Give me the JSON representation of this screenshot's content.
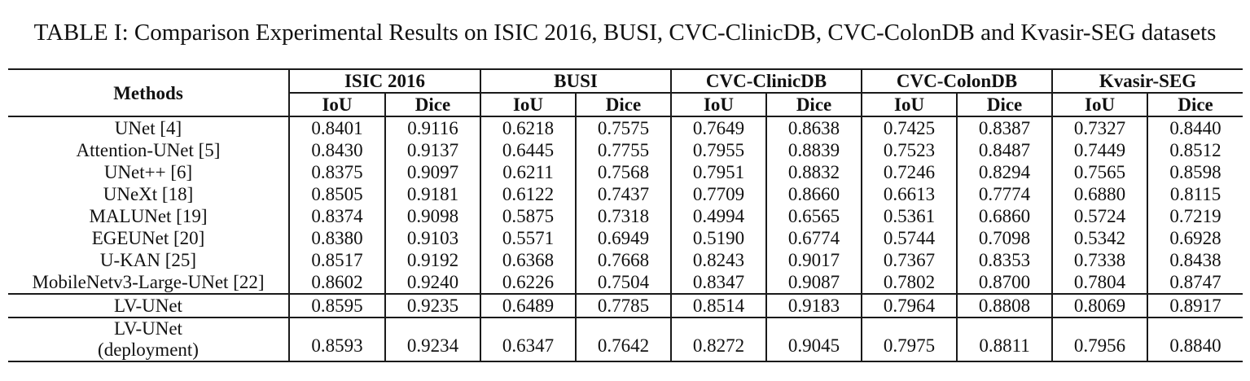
{
  "title": "TABLE I: Comparison Experimental Results on ISIC 2016, BUSI, CVC-ClinicDB, CVC-ColonDB and Kvasir-SEG datasets",
  "table": {
    "methods_header": "Methods",
    "groups": [
      "ISIC 2016",
      "BUSI",
      "CVC-ClinicDB",
      "CVC-ColonDB",
      "Kvasir-SEG"
    ],
    "subheaders": [
      "IoU",
      "Dice"
    ],
    "rows": [
      {
        "method_lines": [
          "UNet [4]"
        ],
        "method_bold": false,
        "variant": "baseline",
        "values": [
          "0.8401",
          "0.9116",
          "0.6218",
          "0.7575",
          "0.7649",
          "0.8638",
          "0.7425",
          "0.8387",
          "0.7327",
          "0.8440"
        ],
        "bold": [
          false,
          false,
          false,
          false,
          false,
          false,
          false,
          false,
          false,
          false
        ]
      },
      {
        "method_lines": [
          "Attention-UNet [5]"
        ],
        "method_bold": false,
        "variant": "baseline",
        "values": [
          "0.8430",
          "0.9137",
          "0.6445",
          "0.7755",
          "0.7955",
          "0.8839",
          "0.7523",
          "0.8487",
          "0.7449",
          "0.8512"
        ],
        "bold": [
          false,
          false,
          false,
          false,
          false,
          false,
          false,
          false,
          false,
          false
        ]
      },
      {
        "method_lines": [
          "UNet++ [6]"
        ],
        "method_bold": false,
        "variant": "baseline",
        "values": [
          "0.8375",
          "0.9097",
          "0.6211",
          "0.7568",
          "0.7951",
          "0.8832",
          "0.7246",
          "0.8294",
          "0.7565",
          "0.8598"
        ],
        "bold": [
          false,
          false,
          false,
          false,
          false,
          false,
          false,
          false,
          false,
          false
        ]
      },
      {
        "method_lines": [
          "UNeXt [18]"
        ],
        "method_bold": false,
        "variant": "baseline",
        "values": [
          "0.8505",
          "0.9181",
          "0.6122",
          "0.7437",
          "0.7709",
          "0.8660",
          "0.6613",
          "0.7774",
          "0.6880",
          "0.8115"
        ],
        "bold": [
          false,
          false,
          false,
          false,
          false,
          false,
          false,
          false,
          false,
          false
        ]
      },
      {
        "method_lines": [
          "MALUNet [19]"
        ],
        "method_bold": false,
        "variant": "baseline",
        "values": [
          "0.8374",
          "0.9098",
          "0.5875",
          "0.7318",
          "0.4994",
          "0.6565",
          "0.5361",
          "0.6860",
          "0.5724",
          "0.7219"
        ],
        "bold": [
          false,
          false,
          false,
          false,
          false,
          false,
          false,
          false,
          false,
          false
        ]
      },
      {
        "method_lines": [
          "EGEUNet [20]"
        ],
        "method_bold": false,
        "variant": "baseline",
        "values": [
          "0.8380",
          "0.9103",
          "0.5571",
          "0.6949",
          "0.5190",
          "0.6774",
          "0.5744",
          "0.7098",
          "0.5342",
          "0.6928"
        ],
        "bold": [
          false,
          false,
          false,
          false,
          false,
          false,
          false,
          false,
          false,
          false
        ]
      },
      {
        "method_lines": [
          "U-KAN [25]"
        ],
        "method_bold": false,
        "variant": "baseline",
        "values": [
          "0.8517",
          "0.9192",
          "0.6368",
          "0.7668",
          "0.8243",
          "0.9017",
          "0.7367",
          "0.8353",
          "0.7338",
          "0.8438"
        ],
        "bold": [
          false,
          false,
          false,
          false,
          false,
          false,
          false,
          false,
          false,
          false
        ]
      },
      {
        "method_lines": [
          "MobileNetv3-Large-UNet [22]"
        ],
        "method_bold": false,
        "variant": "baseline",
        "values": [
          "0.8602",
          "0.9240",
          "0.6226",
          "0.7504",
          "0.8347",
          "0.9087",
          "0.7802",
          "0.8700",
          "0.7804",
          "0.8747"
        ],
        "bold": [
          true,
          true,
          false,
          false,
          false,
          false,
          false,
          false,
          false,
          false
        ]
      },
      {
        "method_lines": [
          "LV-UNet"
        ],
        "method_bold": true,
        "variant": "proposed",
        "values": [
          "0.8595",
          "0.9235",
          "0.6489",
          "0.7785",
          "0.8514",
          "0.9183",
          "0.7964",
          "0.8808",
          "0.8069",
          "0.8917"
        ],
        "bold": [
          false,
          false,
          true,
          true,
          true,
          true,
          false,
          false,
          true,
          true
        ]
      },
      {
        "method_lines": [
          "LV-UNet",
          "(deployment)"
        ],
        "method_bold": true,
        "variant": "proposed-deployment",
        "values": [
          "0.8593",
          "0.9234",
          "0.6347",
          "0.7642",
          "0.8272",
          "0.9045",
          "0.7975",
          "0.8811",
          "0.7956",
          "0.8840"
        ],
        "bold": [
          false,
          false,
          false,
          false,
          false,
          false,
          true,
          true,
          false,
          false
        ]
      }
    ]
  }
}
